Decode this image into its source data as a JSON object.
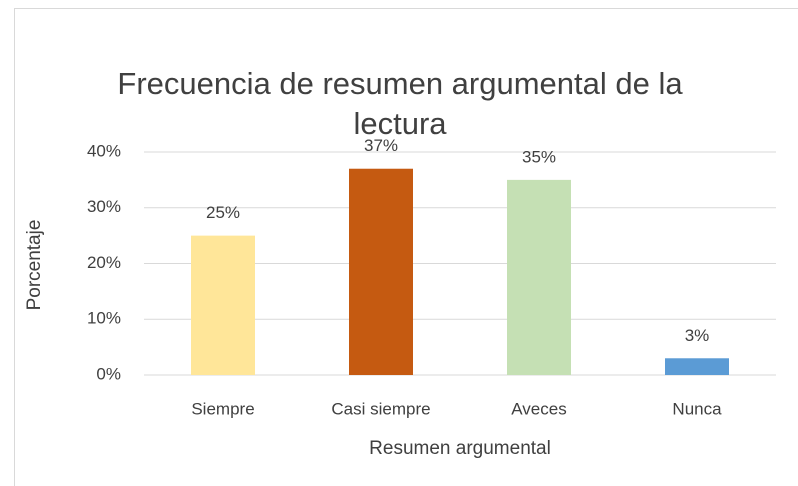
{
  "chart_data": {
    "type": "bar",
    "title": "Frecuencia de resumen argumental de la lectura",
    "x_label": "Resumen argumental",
    "y_label": "Porcentaje",
    "categories": [
      "Siempre",
      "Casi siempre",
      "Aveces",
      "Nunca"
    ],
    "values": [
      25,
      37,
      35,
      3
    ],
    "value_labels": [
      "25%",
      "37%",
      "35%",
      "3%"
    ],
    "colors": [
      "#FFE699",
      "#C55A11",
      "#C5E0B4",
      "#5B9BD5"
    ],
    "ylim": [
      0,
      40
    ],
    "yticks": [
      {
        "value": 0,
        "label": "0%"
      },
      {
        "value": 10,
        "label": "10%"
      },
      {
        "value": 20,
        "label": "20%"
      },
      {
        "value": 30,
        "label": "30%"
      },
      {
        "value": 40,
        "label": "40%"
      }
    ],
    "grid": true
  }
}
